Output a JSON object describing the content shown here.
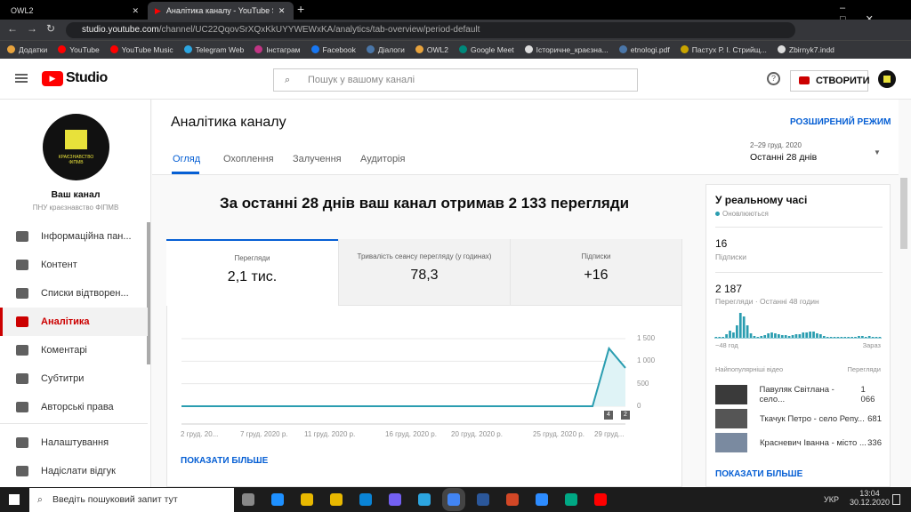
{
  "browser": {
    "tabs": [
      {
        "label": "OWL2"
      },
      {
        "label": "Аналітика каналу - YouTube Stu"
      }
    ],
    "url_host": "studio.youtube.com",
    "url_path": "/channel/UC22QqovSrXQxKkUYYWEWxKA/analytics/tab-overview/period-default",
    "bookmarks": [
      {
        "label": "Додатки",
        "color": "#e8a33d"
      },
      {
        "label": "YouTube",
        "color": "#ff0000"
      },
      {
        "label": "YouTube Music",
        "color": "#ff0000"
      },
      {
        "label": "Telegram Web",
        "color": "#2ca5e0"
      },
      {
        "label": "Інстаграм",
        "color": "#c13584"
      },
      {
        "label": "Facebook",
        "color": "#1877f2"
      },
      {
        "label": "Діалоги",
        "color": "#4a76a8"
      },
      {
        "label": "OWL2",
        "color": "#e8a33d"
      },
      {
        "label": "Google Meet",
        "color": "#00897b"
      },
      {
        "label": "Історичне_краєзна...",
        "color": "#ddd"
      },
      {
        "label": "etnologi.pdf",
        "color": "#4a76a8"
      },
      {
        "label": "Пастух Р. І. Стрийщ...",
        "color": "#c9a400"
      },
      {
        "label": "Zbirnyk7.indd",
        "color": "#ddd"
      }
    ]
  },
  "header": {
    "logo": "Studio",
    "search_placeholder": "Пошук у вашому каналі",
    "create_label": "СТВОРИТИ"
  },
  "sidebar": {
    "channel_label": "Ваш канал",
    "channel_name": "ПНУ краєзнавство ФІПМВ",
    "avatar_text": "КРАЄЗНАВСТВО ФІПМВ",
    "items": [
      {
        "label": "Інформаційна пан...",
        "icon": "dashboard-icon"
      },
      {
        "label": "Контент",
        "icon": "content-icon"
      },
      {
        "label": "Списки відтворен...",
        "icon": "playlist-icon"
      },
      {
        "label": "Аналітика",
        "icon": "analytics-icon",
        "selected": true
      },
      {
        "label": "Коментарі",
        "icon": "comments-icon"
      },
      {
        "label": "Субтитри",
        "icon": "subtitles-icon"
      },
      {
        "label": "Авторські права",
        "icon": "copyright-icon"
      },
      {
        "label": "Налаштування",
        "icon": "gear-icon"
      },
      {
        "label": "Надіслати відгук",
        "icon": "feedback-icon"
      }
    ]
  },
  "main": {
    "title": "Аналітика каналу",
    "advanced": "РОЗШИРЕНИЙ РЕЖИМ",
    "tabs": [
      "Огляд",
      "Охоплення",
      "Залучення",
      "Аудиторія"
    ],
    "period_range": "2–29 груд. 2020",
    "period_label": "Останні 28 днів",
    "headline": "За останні 28 днів ваш канал отримав 2 133 перегляди",
    "metrics": [
      {
        "label": "Перегляди",
        "value": "2,1 тис."
      },
      {
        "label": "Тривалість сеансу перегляду (у годинах)",
        "value": "78,3"
      },
      {
        "label": "Підписки",
        "value": "+16"
      }
    ],
    "show_more": "ПОКАЗАТИ БІЛЬШЕ",
    "chart_data": {
      "type": "area",
      "x": [
        "2 груд.",
        "3",
        "4",
        "5",
        "6",
        "7",
        "8",
        "9",
        "10",
        "11",
        "12",
        "13",
        "14",
        "15",
        "16",
        "17",
        "18",
        "19",
        "20",
        "21",
        "22",
        "23",
        "24",
        "25",
        "26",
        "27",
        "28",
        "29"
      ],
      "values": [
        0,
        0,
        0,
        0,
        0,
        0,
        0,
        0,
        0,
        0,
        0,
        0,
        0,
        0,
        0,
        0,
        0,
        0,
        0,
        0,
        0,
        0,
        0,
        0,
        0,
        0,
        1283,
        850
      ],
      "ylim": [
        0,
        1500
      ],
      "yticks": [
        "1 500",
        "1 000",
        "500",
        "0"
      ],
      "xtick_labels": [
        "2 груд. 20...",
        "7 груд. 2020 р.",
        "11 груд. 2020 р.",
        "16 груд. 2020 р.",
        "20 груд. 2020 р.",
        "25 груд. 2020 р.",
        "29 груд..."
      ],
      "markers": [
        "4",
        "2"
      ],
      "color": "#2a9db0"
    }
  },
  "realtime": {
    "title": "У реальному часі",
    "status": "Оновлюються",
    "subs_value": "16",
    "subs_label": "Підписки",
    "views_value": "2 187",
    "views_label": "Перегляди · Останні 48 годин",
    "axis_start": "−48 год",
    "axis_end": "Зараз",
    "bars": [
      1,
      1,
      1,
      4,
      8,
      6,
      14,
      28,
      24,
      14,
      5,
      2,
      1,
      2,
      3,
      5,
      6,
      5,
      4,
      3,
      3,
      2,
      3,
      4,
      4,
      6,
      6,
      7,
      7,
      5,
      4,
      2,
      1,
      1,
      1,
      1,
      1,
      1,
      1,
      1,
      1,
      2,
      2,
      1,
      2,
      1,
      1,
      1
    ],
    "top_header": "Найпопулярніші відео",
    "top_views_header": "Перегляди",
    "videos": [
      {
        "title": "Павуляк Світлана - село...",
        "views": "1 066"
      },
      {
        "title": "Ткачук Петро - село Репу...",
        "views": "681"
      },
      {
        "title": "Красневич Іванна - місто ...",
        "views": "336"
      }
    ],
    "show_more": "ПОКАЗАТИ БІЛЬШЕ"
  },
  "taskbar": {
    "search_placeholder": "Введіть пошуковий запит тут",
    "lang": "УКР",
    "time": "13:04",
    "date": "30.12.2020"
  }
}
